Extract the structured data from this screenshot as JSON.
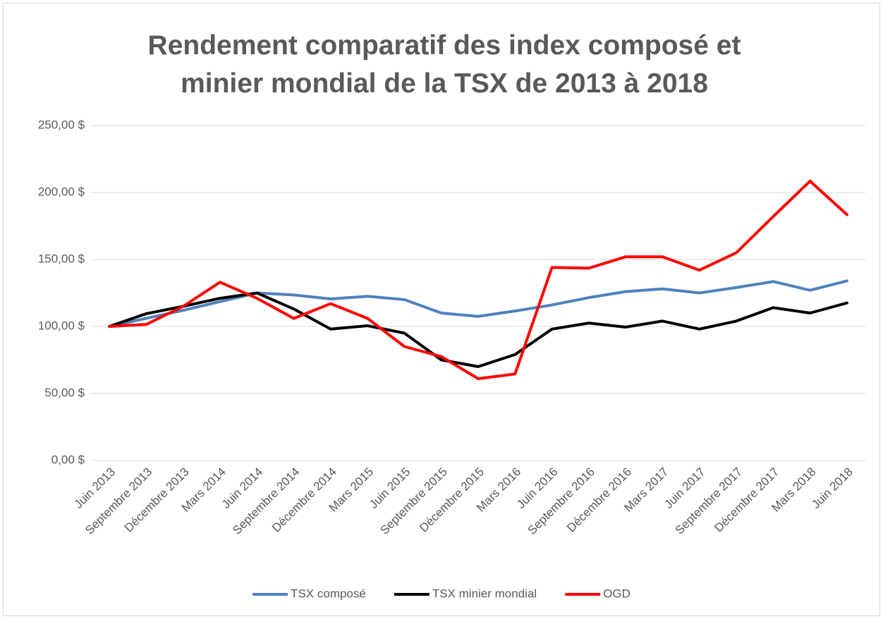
{
  "chart_data": {
    "type": "line",
    "title": "Rendement comparatif des index composé et minier mondial de la TSX de 2013 à 2018",
    "categories": [
      "Juin 2013",
      "Septembre 2013",
      "Décembre 2013",
      "Mars 2014",
      "Juin 2014",
      "Septembre 2014",
      "Décembre 2014",
      "Mars 2015",
      "Juin 2015",
      "Septembre 2015",
      "Décembre 2015",
      "Mars 2016",
      "Juin 2016",
      "Septembre 2016",
      "Décembre 2016",
      "Mars 2017",
      "Juin 2017",
      "Septembre 2017",
      "Décembre 2017",
      "Mars 2018",
      "Juin 2018"
    ],
    "series": [
      {
        "name": "TSX composé",
        "color": "#4f81bd",
        "values": [
          100,
          106,
          112,
          118.5,
          125,
          123.5,
          120.5,
          122.5,
          120,
          110,
          107.5,
          111.5,
          116,
          121.5,
          126,
          128,
          125,
          129,
          133.5,
          127,
          134
        ]
      },
      {
        "name": "TSX minier mondial",
        "color": "#000000",
        "values": [
          100,
          109.5,
          115,
          121,
          125,
          113,
          98,
          100.5,
          95,
          75,
          70,
          79,
          98,
          102.5,
          99.5,
          104,
          98,
          104,
          114,
          110,
          117.5
        ]
      },
      {
        "name": "OGD",
        "color": "#ff0000",
        "values": [
          100,
          101.5,
          115,
          133,
          121,
          106,
          117,
          106,
          85,
          77.5,
          61,
          64.5,
          144,
          143.5,
          152,
          152,
          142,
          155,
          182,
          208.5,
          183.5
        ]
      }
    ],
    "ylim": [
      0,
      250
    ],
    "yticks": [
      {
        "value": 0,
        "label": "0,00 $"
      },
      {
        "value": 50,
        "label": "50,00 $"
      },
      {
        "value": 100,
        "label": "100,00 $"
      },
      {
        "value": 150,
        "label": "150,00 $"
      },
      {
        "value": 200,
        "label": "200,00 $"
      },
      {
        "value": 250,
        "label": "250,00 $"
      }
    ],
    "grid": true,
    "legend": "bottom"
  }
}
